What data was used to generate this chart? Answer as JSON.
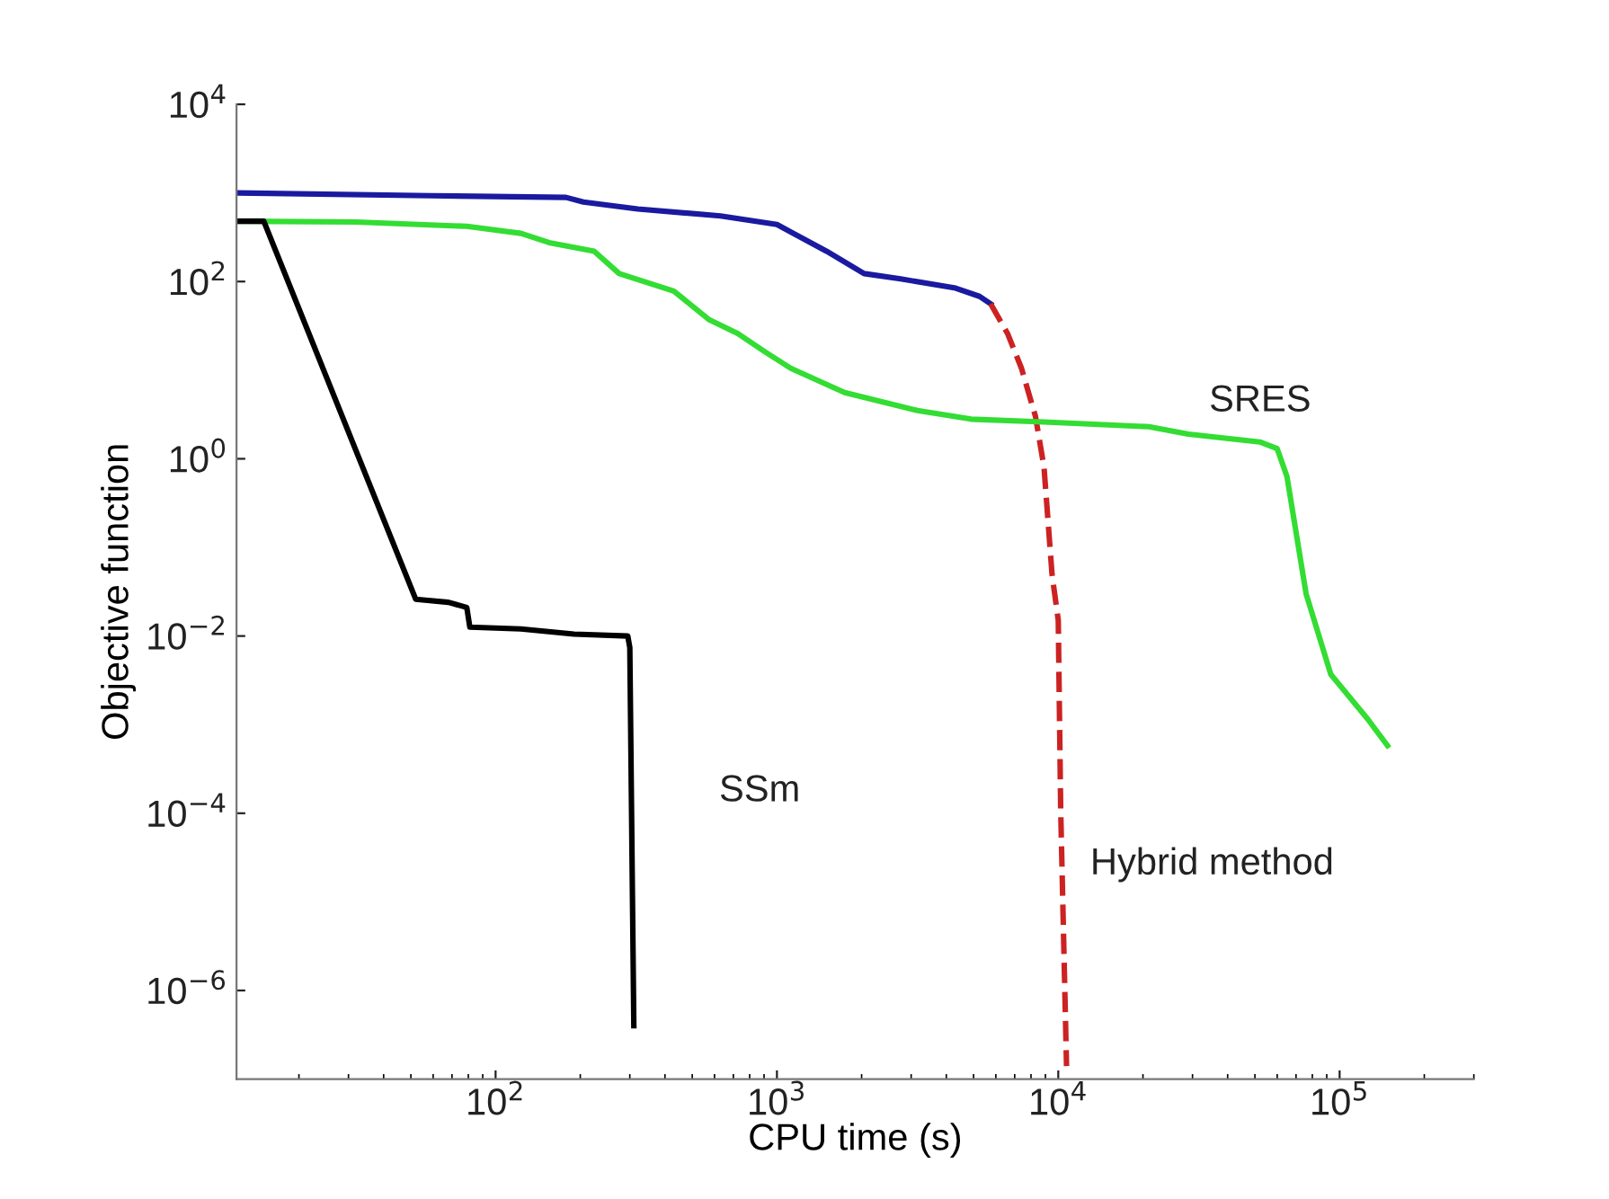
{
  "chart_data": {
    "type": "line",
    "xlabel": "CPU time (s)",
    "ylabel": "Objective function",
    "log": "xy",
    "grid": false,
    "legend": false,
    "line_style": "solid",
    "marker": "none",
    "xlim": [
      12,
      300000
    ],
    "ylim": [
      1e-07,
      10000
    ],
    "xticks": [
      {
        "value": 100,
        "label": "10$^{2}$"
      },
      {
        "value": 1000,
        "label": "10$^{3}$"
      },
      {
        "value": 10000,
        "label": "10$^{4}$"
      },
      {
        "value": 100000,
        "label": "10$^{5}$"
      }
    ],
    "yticks": [
      {
        "value": 1e-06,
        "label": "10$^{−6}$"
      },
      {
        "value": 0.0001,
        "label": "10$^{−4}$"
      },
      {
        "value": 0.01,
        "label": "10$^{−2}$"
      },
      {
        "value": 1,
        "label": "10$^{0}$"
      },
      {
        "value": 100,
        "label": "10$^{2}$"
      },
      {
        "value": 10000,
        "label": "10$^{4}$"
      }
    ],
    "series": [
      {
        "color": "#1a1aa0",
        "x": [
          12,
          59,
          178,
          205,
          320,
          630,
          1000,
          1500,
          2040,
          2750,
          4270,
          5250,
          5750
        ],
        "values": [
          1000,
          930,
          890,
          790,
          660,
          550,
          440,
          220,
          123,
          107,
          85,
          68,
          56
        ]
      },
      {
        "name": "Hybrid method",
        "color": "#cc2222",
        "line_style": "dashed",
        "x": [
          5750,
          6600,
          7400,
          8300,
          8900,
          9500,
          10000,
          10200,
          10700
        ],
        "values": [
          56,
          26,
          10.5,
          3,
          0.8,
          0.05,
          0.015,
          0.00011,
          1.4e-07
        ]
      },
      {
        "name": "SRES",
        "color": "#33dd33",
        "x": [
          12,
          32,
          79,
          123,
          155,
          224,
          275,
          430,
          575,
          725,
          910,
          1120,
          1740,
          3160,
          4900,
          8900,
          21000,
          29000,
          52000,
          60000,
          65000,
          76000,
          93000,
          126000,
          148000
        ],
        "values": [
          480,
          470,
          420,
          350,
          275,
          220,
          123,
          78,
          37,
          26,
          16,
          10.5,
          5.6,
          3.5,
          2.8,
          2.6,
          2.3,
          1.9,
          1.55,
          1.3,
          0.63,
          0.03,
          0.0037,
          0.00115,
          0.00058
        ]
      },
      {
        "name": "SSm",
        "color": "#000000",
        "x": [
          12,
          15,
          52,
          68,
          79,
          81,
          123,
          190,
          295,
          300,
          310
        ],
        "values": [
          480,
          480,
          0.026,
          0.024,
          0.021,
          0.0126,
          0.012,
          0.0105,
          0.01,
          0.0074,
          4e-07
        ]
      }
    ]
  }
}
